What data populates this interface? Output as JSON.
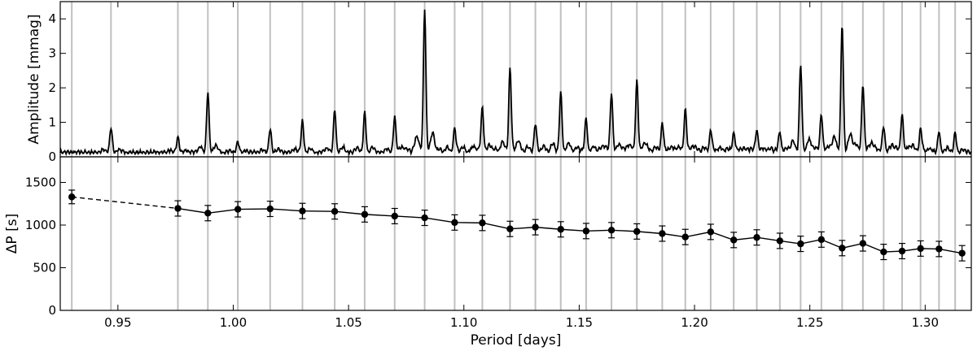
{
  "chart_data": {
    "type": "line",
    "x_axis": {
      "label": "Period [days]",
      "range": [
        0.925,
        1.32
      ],
      "ticks": [
        0.95,
        1.0,
        1.05,
        1.1,
        1.15,
        1.2,
        1.25,
        1.3
      ],
      "tick_labels": [
        "0.95",
        "1.00",
        "1.05",
        "1.10",
        "1.15",
        "1.20",
        "1.25",
        "1.30"
      ]
    },
    "panels": [
      {
        "id": "top",
        "type": "line",
        "ylabel": "Amplitude [mmag]",
        "ylim": [
          0,
          4.5
        ],
        "yticks": [
          0,
          1,
          2,
          3,
          4
        ],
        "ytick_labels": [
          "0",
          "1",
          "2",
          "3",
          "4"
        ],
        "grid": false,
        "series": [
          {
            "style": "solid",
            "color": "#000000",
            "peaks": [
              {
                "x": 0.947,
                "y": 0.72
              },
              {
                "x": 0.976,
                "y": 0.45
              },
              {
                "x": 0.989,
                "y": 1.75
              },
              {
                "x": 1.002,
                "y": 0.3
              },
              {
                "x": 1.016,
                "y": 0.68
              },
              {
                "x": 1.03,
                "y": 0.92
              },
              {
                "x": 1.044,
                "y": 1.25
              },
              {
                "x": 1.057,
                "y": 1.15
              },
              {
                "x": 1.07,
                "y": 1.05
              },
              {
                "x": 1.083,
                "y": 4.1
              },
              {
                "x": 1.096,
                "y": 0.62
              },
              {
                "x": 1.108,
                "y": 1.28
              },
              {
                "x": 1.12,
                "y": 2.4
              },
              {
                "x": 1.131,
                "y": 0.75
              },
              {
                "x": 1.142,
                "y": 1.68
              },
              {
                "x": 1.153,
                "y": 0.92
              },
              {
                "x": 1.164,
                "y": 1.7
              },
              {
                "x": 1.175,
                "y": 2.05
              },
              {
                "x": 1.186,
                "y": 0.82
              },
              {
                "x": 1.196,
                "y": 1.22
              },
              {
                "x": 1.207,
                "y": 0.6
              },
              {
                "x": 1.217,
                "y": 0.55
              },
              {
                "x": 1.227,
                "y": 0.62
              },
              {
                "x": 1.237,
                "y": 0.55
              },
              {
                "x": 1.246,
                "y": 2.5
              },
              {
                "x": 1.255,
                "y": 1.1
              },
              {
                "x": 1.264,
                "y": 3.65
              },
              {
                "x": 1.273,
                "y": 1.95
              },
              {
                "x": 1.282,
                "y": 0.68
              },
              {
                "x": 1.29,
                "y": 1.1
              },
              {
                "x": 1.298,
                "y": 0.65
              },
              {
                "x": 1.306,
                "y": 0.62
              },
              {
                "x": 1.313,
                "y": 0.55
              }
            ]
          }
        ]
      },
      {
        "id": "bottom",
        "type": "line",
        "ylabel": "ΔP [s]",
        "ylim": [
          0,
          1800
        ],
        "yticks": [
          0,
          500,
          1000,
          1500
        ],
        "ytick_labels": [
          "0",
          "500",
          "1000",
          "1500"
        ],
        "grid": false,
        "series": [
          {
            "style": "dashed",
            "color": "#000000",
            "x": [
              0.93,
              0.976
            ],
            "y": [
              1330,
              1195
            ]
          },
          {
            "style": "solid-markers",
            "color": "#000000",
            "x": [
              0.976,
              0.989,
              1.002,
              1.016,
              1.03,
              1.044,
              1.057,
              1.07,
              1.083,
              1.096,
              1.108,
              1.12,
              1.131,
              1.142,
              1.153,
              1.164,
              1.175,
              1.186,
              1.196,
              1.207,
              1.217,
              1.227,
              1.237,
              1.246,
              1.255,
              1.264,
              1.273,
              1.282,
              1.29,
              1.298,
              1.306,
              1.316
            ],
            "y": [
              1195,
              1140,
              1185,
              1190,
              1165,
              1160,
              1125,
              1105,
              1085,
              1030,
              1025,
              955,
              975,
              950,
              930,
              940,
              925,
              900,
              860,
              920,
              825,
              855,
              815,
              780,
              830,
              730,
              785,
              685,
              695,
              725,
              720,
              670
            ],
            "yerr": 90
          },
          {
            "style": "marker-only",
            "color": "#000000",
            "x": [
              0.93
            ],
            "y": [
              1330
            ],
            "yerr": 80
          }
        ]
      }
    ],
    "vertical_lines": {
      "color": "#c0c0c0",
      "x": [
        0.93,
        0.947,
        0.976,
        0.989,
        1.002,
        1.016,
        1.03,
        1.044,
        1.057,
        1.07,
        1.083,
        1.096,
        1.108,
        1.12,
        1.131,
        1.142,
        1.153,
        1.164,
        1.175,
        1.186,
        1.196,
        1.207,
        1.217,
        1.227,
        1.237,
        1.246,
        1.255,
        1.264,
        1.273,
        1.282,
        1.29,
        1.298,
        1.306,
        1.313
      ]
    }
  }
}
